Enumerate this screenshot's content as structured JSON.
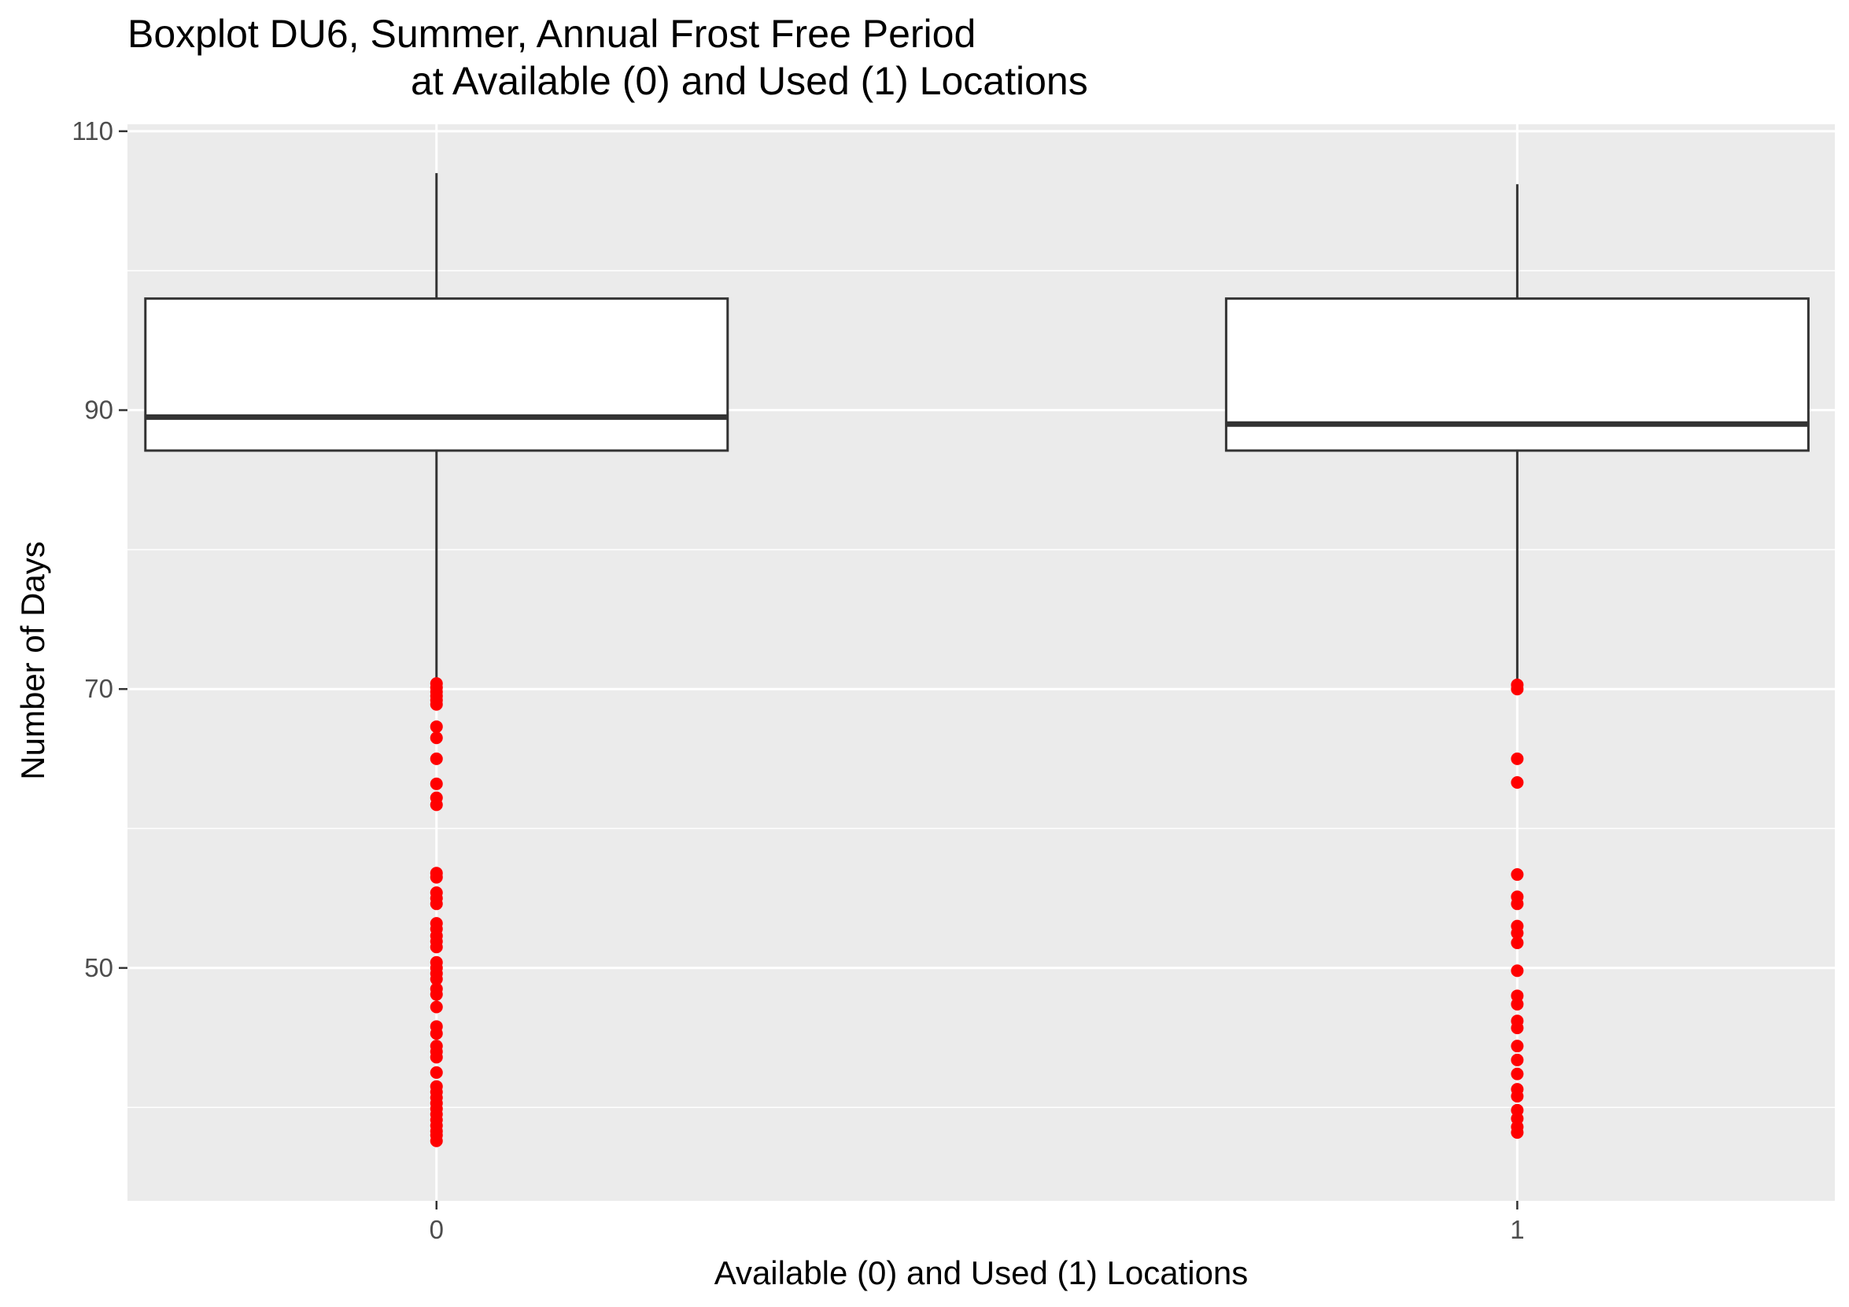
{
  "chart_data": {
    "type": "boxplot",
    "title_line1": "Boxplot DU6, Summer, Annual Frost Free Period",
    "title_line2": "at Available (0) and Used (1) Locations",
    "xlabel": "Available (0) and Used (1) Locations",
    "ylabel": "Number of Days",
    "ylim": [
      33.3,
      110.5
    ],
    "yticks": [
      50,
      70,
      90,
      110
    ],
    "grid": true,
    "colors": {
      "panel": "#ebebeb",
      "grid": "#ffffff",
      "box_fill": "#ffffff",
      "box_line": "#333333",
      "outlier": "#ff0000",
      "tick_text": "#4d4d4d"
    },
    "categories": [
      "0",
      "1"
    ],
    "boxes": [
      {
        "category": "0",
        "q1": 87.1,
        "median": 89.5,
        "q3": 98.0,
        "whisker_low": 70.5,
        "whisker_high": 107.0,
        "outliers": [
          70.4,
          70.1,
          69.8,
          69.5,
          69.2,
          68.9,
          67.3,
          66.5,
          65.0,
          63.2,
          62.2,
          61.7,
          56.8,
          56.5,
          55.4,
          55.0,
          54.6,
          53.2,
          52.8,
          52.3,
          51.9,
          51.5,
          50.4,
          50.0,
          49.6,
          49.2,
          48.5,
          48.1,
          47.2,
          45.8,
          45.3,
          44.4,
          44.0,
          43.6,
          42.5,
          41.5,
          41.1,
          40.7,
          40.3,
          39.9,
          39.5,
          39.1,
          38.7,
          38.3,
          38.0,
          37.6
        ]
      },
      {
        "category": "1",
        "q1": 87.1,
        "median": 89.0,
        "q3": 98.0,
        "whisker_low": 70.5,
        "whisker_high": 106.2,
        "outliers": [
          70.3,
          70.0,
          65.0,
          63.3,
          56.7,
          55.1,
          54.6,
          53.0,
          52.5,
          51.8,
          49.8,
          48.0,
          47.4,
          46.2,
          45.7,
          44.4,
          43.4,
          42.4,
          41.3,
          40.8,
          39.8,
          39.2,
          38.6,
          38.2
        ]
      }
    ]
  }
}
